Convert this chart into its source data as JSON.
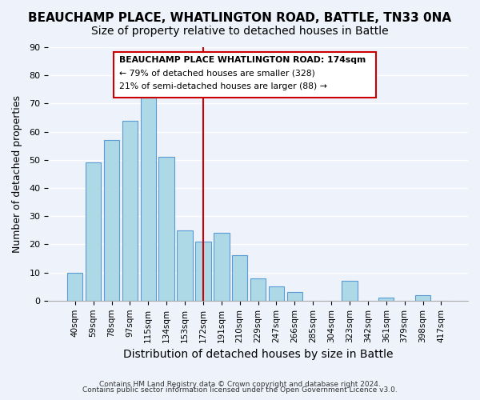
{
  "title": "BEAUCHAMP PLACE, WHATLINGTON ROAD, BATTLE, TN33 0NA",
  "subtitle": "Size of property relative to detached houses in Battle",
  "xlabel": "Distribution of detached houses by size in Battle",
  "ylabel": "Number of detached properties",
  "bar_labels": [
    "40sqm",
    "59sqm",
    "78sqm",
    "97sqm",
    "115sqm",
    "134sqm",
    "153sqm",
    "172sqm",
    "191sqm",
    "210sqm",
    "229sqm",
    "247sqm",
    "266sqm",
    "285sqm",
    "304sqm",
    "323sqm",
    "342sqm",
    "361sqm",
    "379sqm",
    "398sqm",
    "417sqm"
  ],
  "bar_values": [
    10,
    49,
    57,
    64,
    72,
    51,
    25,
    21,
    24,
    16,
    8,
    5,
    3,
    0,
    0,
    7,
    0,
    1,
    0,
    2,
    0
  ],
  "bar_color": "#add8e6",
  "bar_edge_color": "#5b9bd5",
  "vline_x_index": 7,
  "vline_color": "#cc0000",
  "ylim": [
    0,
    90
  ],
  "yticks": [
    0,
    10,
    20,
    30,
    40,
    50,
    60,
    70,
    80,
    90
  ],
  "annotation_title": "BEAUCHAMP PLACE WHATLINGTON ROAD: 174sqm",
  "annotation_line1": "← 79% of detached houses are smaller (328)",
  "annotation_line2": "21% of semi-detached houses are larger (88) →",
  "annotation_box_color": "#ffffff",
  "annotation_box_edge": "#cc0000",
  "footnote1": "Contains HM Land Registry data © Crown copyright and database right 2024.",
  "footnote2": "Contains public sector information licensed under the Open Government Licence v3.0.",
  "background_color": "#eef2fb",
  "grid_color": "#ffffff",
  "title_fontsize": 11,
  "subtitle_fontsize": 10,
  "xlabel_fontsize": 10,
  "ylabel_fontsize": 9
}
